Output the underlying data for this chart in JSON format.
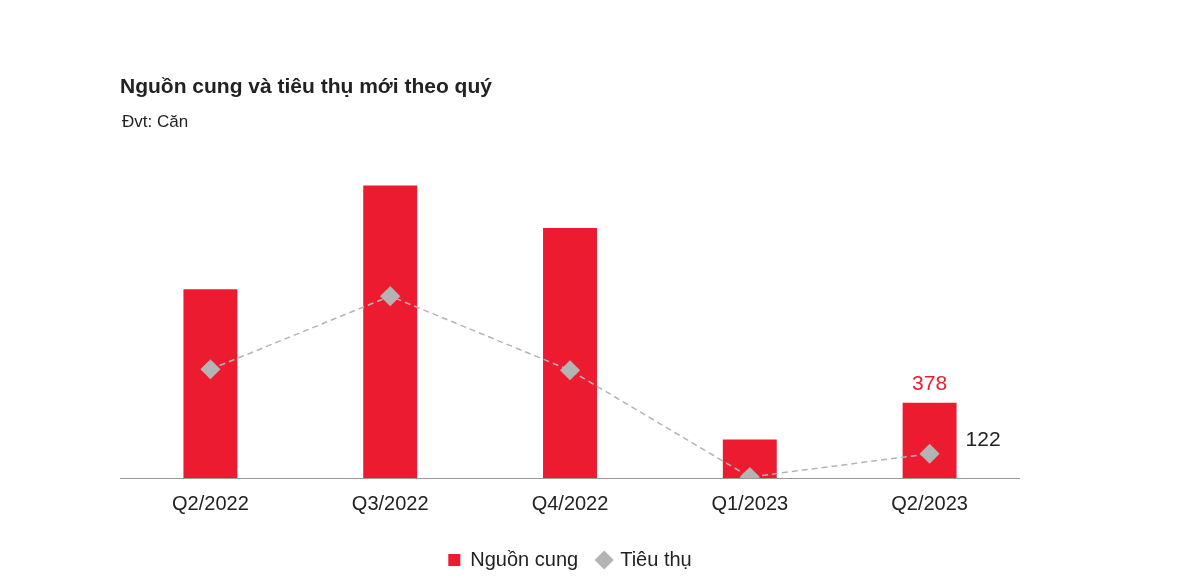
{
  "chart_data": {
    "type": "bar",
    "title": "Nguồn cung và tiêu thụ mới theo quý",
    "subtitle": "Đvt: Căn",
    "categories": [
      "Q2/2022",
      "Q3/2022",
      "Q4/2022",
      "Q1/2023",
      "Q2/2023"
    ],
    "series": [
      {
        "name": "Nguồn cung",
        "color": "#ed1b2f",
        "values": [
          950,
          1472,
          1258,
          194,
          378
        ],
        "value_labels": [
          null,
          null,
          null,
          null,
          "378"
        ]
      },
      {
        "name": "Tiêu thụ",
        "type": "line",
        "color": "#b4b4b4",
        "values": [
          547,
          915,
          542,
          5,
          122
        ],
        "value_labels": [
          null,
          null,
          null,
          null,
          "122"
        ],
        "marker": "diamond",
        "line_style": "dashed"
      }
    ],
    "tick_labels": "x",
    "grid": false,
    "legend": "bottom"
  }
}
